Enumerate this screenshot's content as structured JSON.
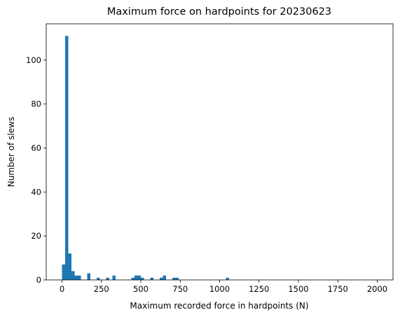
{
  "chart_data": {
    "type": "bar",
    "title": "Maximum force on hardpoints for 20230623",
    "xlabel": "Maximum recorded force in hardpoints (N)",
    "ylabel": "Number of slews",
    "xlim": [
      -100,
      2100
    ],
    "ylim": [
      0,
      116.5
    ],
    "xticks": [
      0,
      250,
      500,
      750,
      1000,
      1250,
      1500,
      1750,
      2000
    ],
    "yticks": [
      0,
      20,
      40,
      60,
      80,
      100
    ],
    "bin_width": 20,
    "bar_color": "#1f77b4",
    "bins": [
      {
        "x0": 0,
        "count": 7
      },
      {
        "x0": 20,
        "count": 111
      },
      {
        "x0": 40,
        "count": 12
      },
      {
        "x0": 60,
        "count": 4
      },
      {
        "x0": 80,
        "count": 2
      },
      {
        "x0": 100,
        "count": 2
      },
      {
        "x0": 160,
        "count": 3
      },
      {
        "x0": 220,
        "count": 1
      },
      {
        "x0": 280,
        "count": 1
      },
      {
        "x0": 320,
        "count": 2
      },
      {
        "x0": 440,
        "count": 1
      },
      {
        "x0": 460,
        "count": 2
      },
      {
        "x0": 480,
        "count": 2
      },
      {
        "x0": 500,
        "count": 1
      },
      {
        "x0": 560,
        "count": 1
      },
      {
        "x0": 620,
        "count": 1
      },
      {
        "x0": 640,
        "count": 2
      },
      {
        "x0": 700,
        "count": 1
      },
      {
        "x0": 720,
        "count": 1
      },
      {
        "x0": 1040,
        "count": 1
      }
    ]
  }
}
